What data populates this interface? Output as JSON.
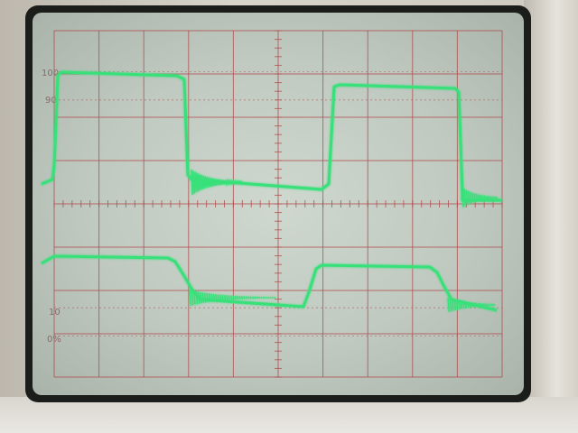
{
  "graticule": {
    "label_100": "100",
    "label_90": "90",
    "label_10": "10",
    "label_0": "0%"
  },
  "colors": {
    "trace": "#39e07a",
    "grid": "#b04848",
    "screen": "#c7d0c7"
  }
}
